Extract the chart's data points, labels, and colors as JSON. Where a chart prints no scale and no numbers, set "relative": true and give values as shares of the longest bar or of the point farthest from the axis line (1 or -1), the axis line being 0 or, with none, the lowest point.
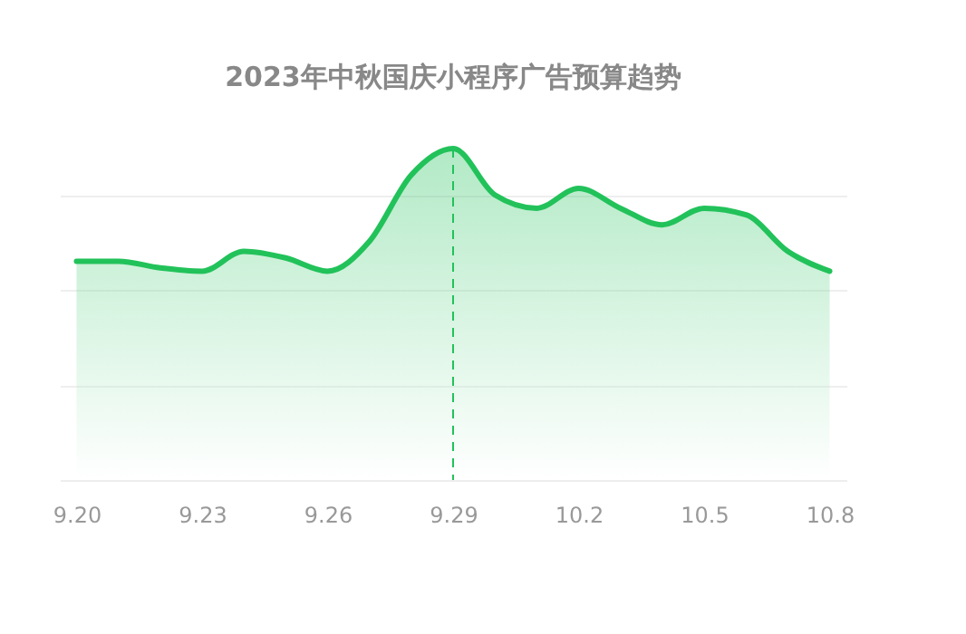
{
  "chart_data": {
    "type": "area",
    "title": "2023年中秋国庆小程序广告预算趋势",
    "categories": [
      "9.20",
      null,
      null,
      "9.23",
      null,
      null,
      "9.26",
      null,
      null,
      "9.29",
      null,
      null,
      "10.2",
      null,
      null,
      "10.5",
      null,
      null,
      "10.8"
    ],
    "relative": true,
    "series": [
      {
        "color": "#22c25a",
        "values": [
          0.66,
          0.66,
          0.64,
          0.63,
          0.69,
          0.67,
          0.63,
          0.72,
          0.92,
          1.0,
          0.86,
          0.82,
          0.88,
          0.82,
          0.77,
          0.82,
          0.8,
          0.69,
          0.63
        ]
      }
    ],
    "ref_lines": [
      {
        "axis": "x",
        "value": "9.29",
        "color": "#22c25a",
        "line_style": "dashed"
      }
    ],
    "grid": "y"
  }
}
